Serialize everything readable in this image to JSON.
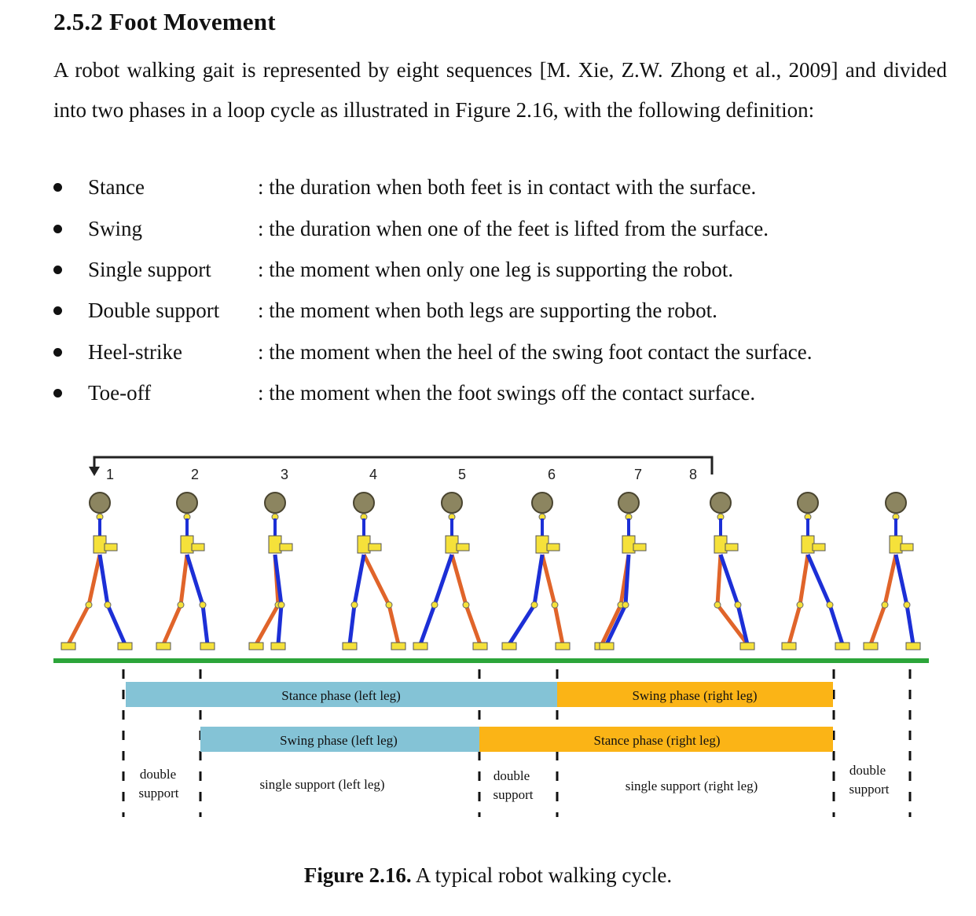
{
  "section": {
    "heading": "2.5.2 Foot Movement",
    "paragraph": "A robot walking gait is represented by eight sequences [M. Xie, Z.W. Zhong et al., 2009] and divided into two phases in a loop cycle as illustrated in Figure 2.16, with the following definition:"
  },
  "definitions": [
    {
      "term": "Stance",
      "desc": ": the duration when both feet is in contact with the surface."
    },
    {
      "term": "Swing",
      "desc": ": the duration when one of the feet is lifted from the surface."
    },
    {
      "term": "Single support",
      "desc": ": the moment when only one leg is supporting the robot."
    },
    {
      "term": "Double support",
      "desc": ": the moment when both legs are supporting the robot."
    },
    {
      "term": "Heel-strike",
      "desc": ": the moment when the heel of the swing foot contact the surface."
    },
    {
      "term": "Toe-off",
      "desc": ": the moment when the foot swings off the contact surface."
    }
  ],
  "figure": {
    "sequence_numbers": [
      "1",
      "2",
      "3",
      "4",
      "5",
      "6",
      "7",
      "8"
    ],
    "bars": {
      "stance_left": "Stance phase (left leg)",
      "swing_right": "Swing phase (right leg)",
      "swing_left": "Swing phase (left leg)",
      "stance_right": "Stance phase (right leg)"
    },
    "support_labels": {
      "double_1": [
        "double",
        "support"
      ],
      "single_left": "single support (left leg)",
      "double_2": [
        "double",
        "support"
      ],
      "single_right": "single support (right leg)",
      "double_3": [
        "double",
        "support"
      ]
    },
    "colors": {
      "blue_bar": "#84c3d6",
      "orange_bar": "#fbb416",
      "ground": "#2ca53a",
      "leg_blue": "#1c2fd6",
      "leg_orange": "#e0642a",
      "joint_yellow": "#f5e13a"
    },
    "caption_label": "Figure 2.16.",
    "caption_text": " A typical robot walking cycle."
  }
}
